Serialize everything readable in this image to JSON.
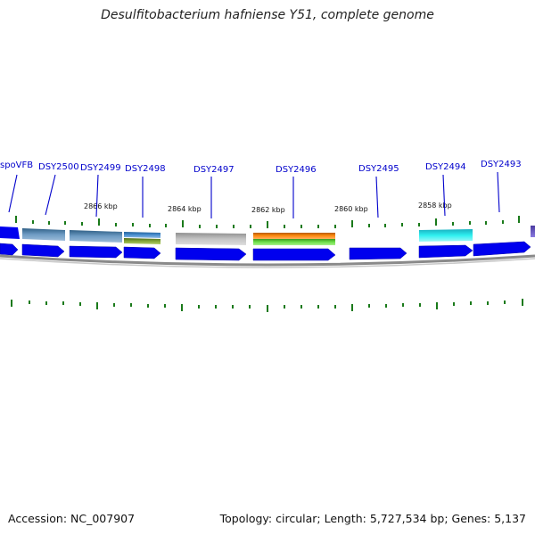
{
  "title": "Desulfitobacterium hafniense Y51, complete genome",
  "accession": "Accession: NC_007907",
  "summary": "Topology: circular; Length: 5,727,534 bp; Genes: 5,137",
  "colors": {
    "gene_label": "#0000cc",
    "cds_arrow": "#0000ee",
    "tick": "#1a7a1a",
    "backbone": "#888888"
  },
  "scale_labels": [
    "2866 kbp",
    "2864 kbp",
    "2862 kbp",
    "2860 kbp",
    "2858 kbp"
  ],
  "genes": [
    "spoVFB",
    "DSY2500",
    "DSY2499",
    "DSY2498",
    "DSY2497",
    "DSY2496",
    "DSY2495",
    "DSY2494",
    "DSY2493"
  ]
}
